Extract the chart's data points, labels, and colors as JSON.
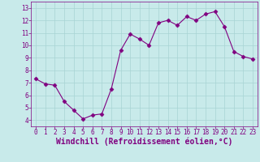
{
  "x": [
    0,
    1,
    2,
    3,
    4,
    5,
    6,
    7,
    8,
    9,
    10,
    11,
    12,
    13,
    14,
    15,
    16,
    17,
    18,
    19,
    20,
    21,
    22,
    23
  ],
  "y": [
    7.3,
    6.9,
    6.8,
    5.5,
    4.8,
    4.1,
    4.4,
    4.5,
    6.5,
    9.6,
    10.9,
    10.5,
    10.0,
    11.8,
    12.0,
    11.6,
    12.3,
    12.0,
    12.5,
    12.7,
    11.5,
    9.5,
    9.1,
    8.9
  ],
  "line_color": "#800080",
  "marker": "D",
  "marker_size": 2.5,
  "bg_color": "#c8eaea",
  "grid_color": "#a8d4d4",
  "xlabel": "Windchill (Refroidissement éolien,°C)",
  "ylim": [
    3.5,
    13.5
  ],
  "xlim": [
    -0.5,
    23.5
  ],
  "yticks": [
    4,
    5,
    6,
    7,
    8,
    9,
    10,
    11,
    12,
    13
  ],
  "xticks": [
    0,
    1,
    2,
    3,
    4,
    5,
    6,
    7,
    8,
    9,
    10,
    11,
    12,
    13,
    14,
    15,
    16,
    17,
    18,
    19,
    20,
    21,
    22,
    23
  ],
  "tick_fontsize": 5.5,
  "xlabel_fontsize": 7.0,
  "tick_color": "#800080",
  "spine_color": "#800080",
  "linewidth": 0.8
}
